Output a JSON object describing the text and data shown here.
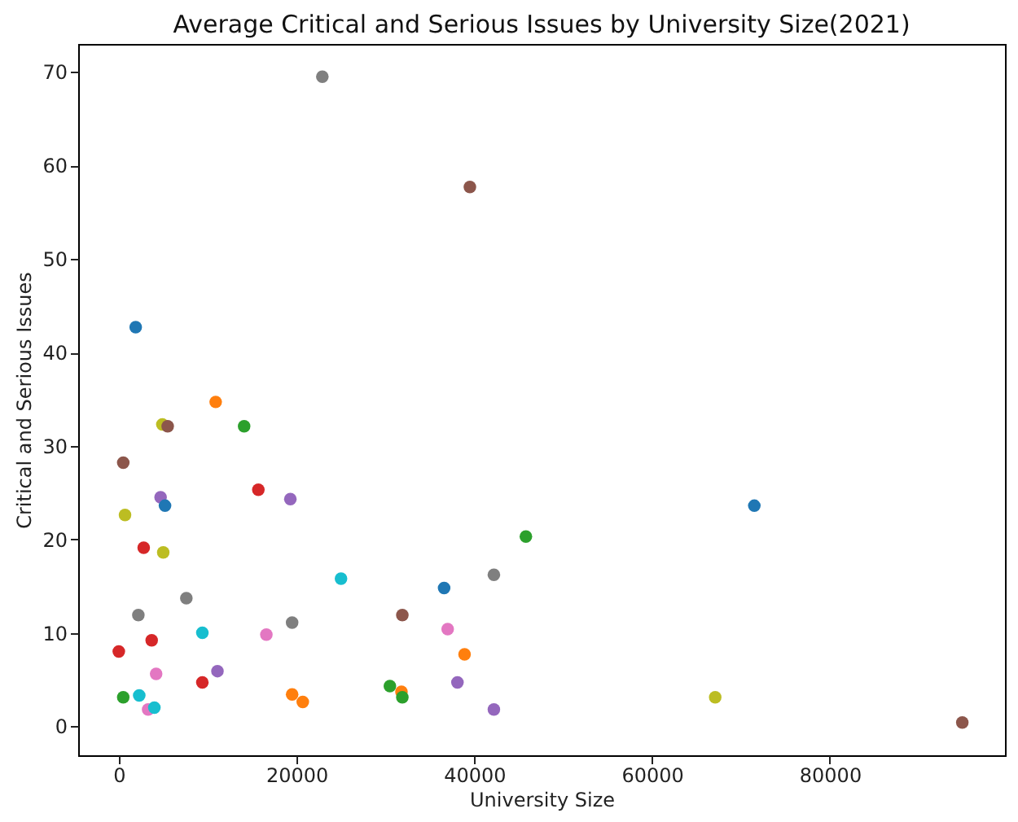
{
  "chart_data": {
    "type": "scatter",
    "title": "Average Critical and Serious Issues by University Size(2021)",
    "xlabel": "University Size",
    "ylabel": "Critical and Serious Issues",
    "marker": "circle",
    "grid": false,
    "xlim": [
      -4570,
      99700
    ],
    "ylim": [
      -3.1,
      73.0
    ],
    "xticks": [
      0,
      20000,
      40000,
      60000,
      80000
    ],
    "yticks": [
      0,
      10,
      20,
      30,
      40,
      50,
      60,
      70
    ],
    "series": [
      {
        "x": [
          22900,
          39500,
          1900,
          10900,
          14100,
          4900,
          5500,
          500,
          15700,
          19300,
          4700,
          5200,
          71500,
          700,
          45800,
          2800,
          5000,
          25000,
          42200,
          36600,
          7600,
          2200,
          31900,
          19500,
          37000,
          9400,
          16600,
          3700,
          0,
          38900,
          11100,
          4200,
          9400,
          38100,
          30500,
          19500,
          31800,
          31900,
          20700,
          500,
          2300,
          67100,
          3300,
          4000,
          42200,
          94900
        ],
        "values": [
          69.5,
          57.7,
          42.7,
          34.7,
          32.1,
          32.3,
          32.1,
          28.2,
          25.3,
          24.3,
          24.5,
          23.6,
          23.6,
          22.6,
          20.3,
          19.1,
          18.6,
          15.8,
          16.2,
          14.8,
          13.7,
          11.9,
          11.9,
          11.1,
          10.4,
          10.0,
          9.8,
          9.2,
          8.0,
          7.7,
          5.9,
          5.6,
          4.7,
          4.7,
          4.3,
          3.4,
          3.7,
          3.1,
          2.6,
          3.1,
          3.3,
          3.1,
          1.8,
          2.0,
          1.8,
          0.4
        ],
        "colors": [
          "#7f7f7f",
          "#8c564b",
          "#1f77b4",
          "#ff7f0e",
          "#2ca02c",
          "#bcbd22",
          "#8c564b",
          "#8c564b",
          "#d62728",
          "#9467bd",
          "#9467bd",
          "#1f77b4",
          "#1f77b4",
          "#bcbd22",
          "#2ca02c",
          "#d62728",
          "#bcbd22",
          "#17becf",
          "#7f7f7f",
          "#1f77b4",
          "#7f7f7f",
          "#7f7f7f",
          "#8c564b",
          "#7f7f7f",
          "#e377c2",
          "#17becf",
          "#e377c2",
          "#d62728",
          "#d62728",
          "#ff7f0e",
          "#9467bd",
          "#e377c2",
          "#d62728",
          "#9467bd",
          "#2ca02c",
          "#ff7f0e",
          "#ff7f0e",
          "#2ca02c",
          "#ff7f0e",
          "#2ca02c",
          "#17becf",
          "#bcbd22",
          "#e377c2",
          "#17becf",
          "#9467bd",
          "#8c564b"
        ]
      }
    ]
  }
}
